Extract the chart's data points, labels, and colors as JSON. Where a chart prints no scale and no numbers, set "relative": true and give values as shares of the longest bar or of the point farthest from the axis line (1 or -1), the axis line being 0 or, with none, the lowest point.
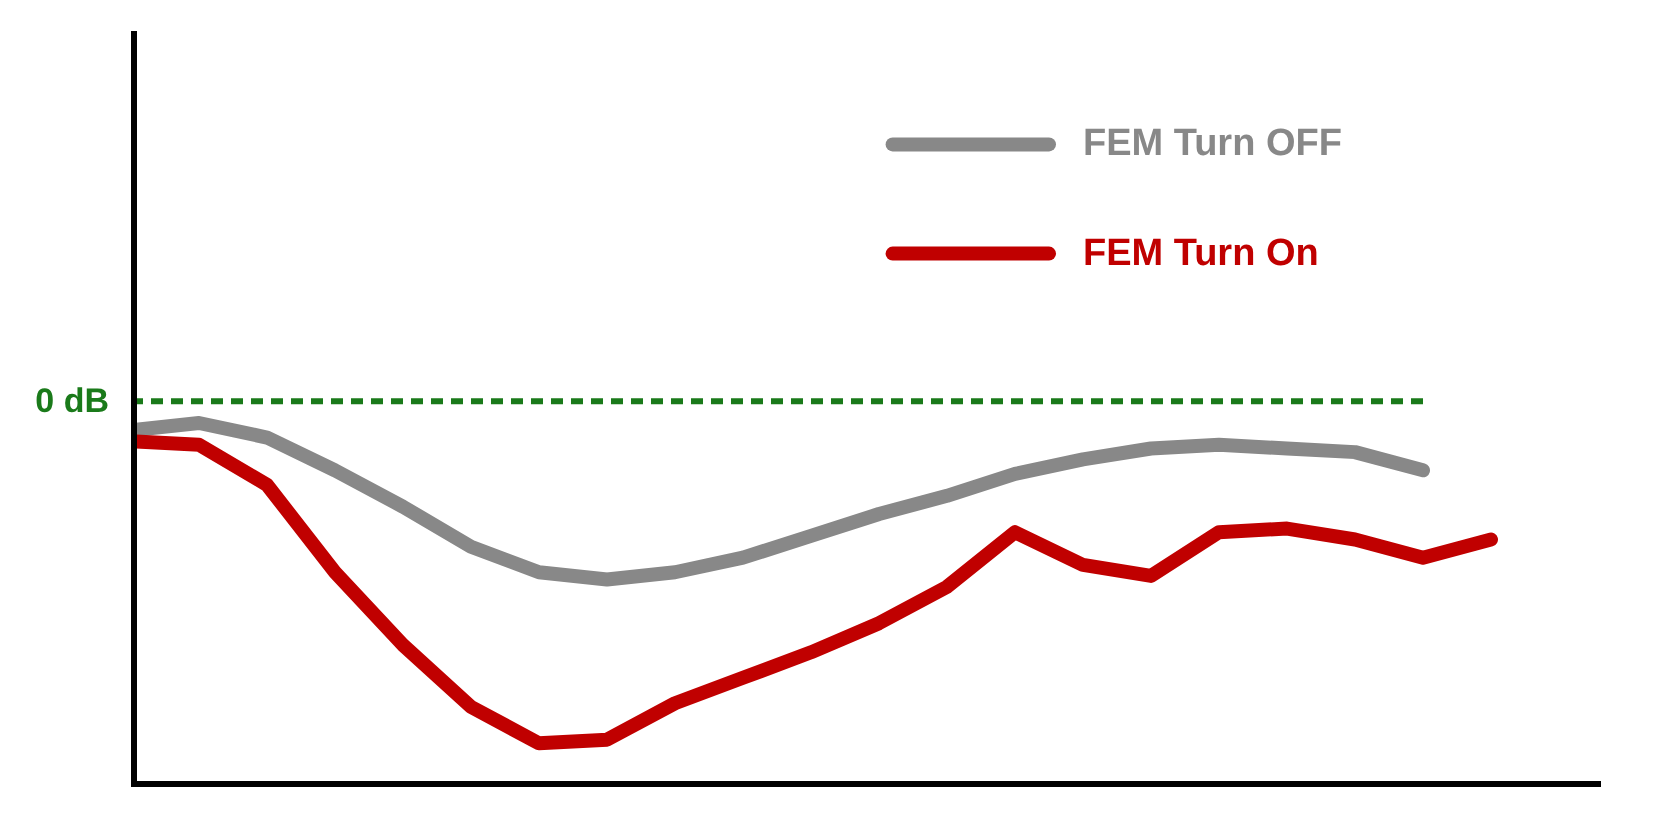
{
  "chart_data": {
    "type": "line",
    "relative": true,
    "legend": "top right",
    "grid": false,
    "line_style": "solid",
    "categories": [
      null,
      null,
      null,
      null,
      null,
      null,
      null,
      null,
      null,
      null,
      null,
      null,
      null,
      null,
      null,
      null,
      null,
      null,
      null,
      null,
      null
    ],
    "series": [
      {
        "name": "FEM Turn OFF",
        "color": "#888888",
        "values": [
          0.98,
          1,
          0.96,
          0.87,
          0.77,
          0.66,
          0.59,
          0.57,
          0.59,
          0.63,
          0.69,
          0.75,
          0.8,
          0.86,
          0.9,
          0.93,
          0.94,
          0.93,
          0.92,
          0.87,
          null
        ]
      },
      {
        "name": "FEM Turn On",
        "color": "#c00000",
        "values": [
          0.95,
          0.94,
          0.83,
          0.59,
          0.39,
          0.22,
          0.12,
          0.13,
          0.23,
          0.3,
          0.37,
          0.45,
          0.55,
          0.7,
          0.61,
          0.58,
          0.7,
          0.71,
          0.68,
          0.63,
          0.68
        ]
      }
    ],
    "ref_lines": [
      {
        "axis": "y",
        "value": 1.06,
        "label": "0 dB",
        "color": "#1a7a1a",
        "line_style": "dashed"
      }
    ]
  }
}
